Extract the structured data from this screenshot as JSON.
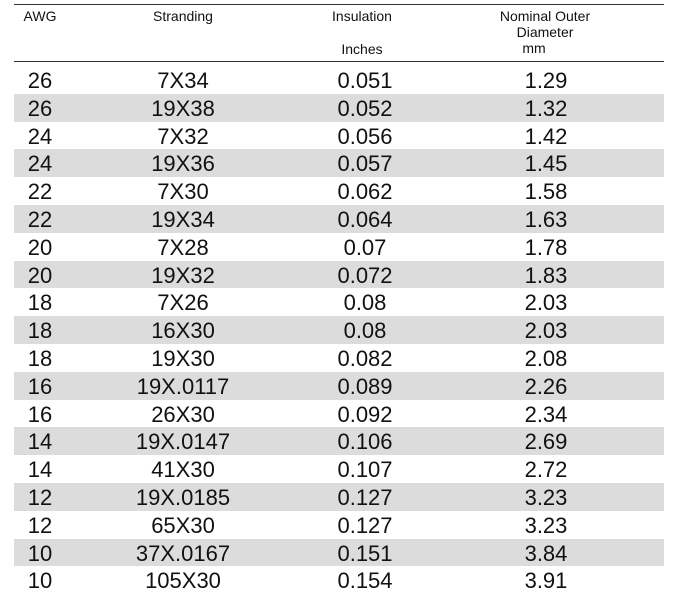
{
  "header": {
    "awg": "AWG",
    "stranding": "Stranding",
    "insulation": "Insulation",
    "insulation_unit": "Inches",
    "diameter_line1": "Nominal Outer",
    "diameter_line2": "Diameter",
    "diameter_unit": "mm"
  },
  "table": {
    "rows": [
      [
        "26",
        "7X34",
        "0.051",
        "1.29"
      ],
      [
        "26",
        "19X38",
        "0.052",
        "1.32"
      ],
      [
        "24",
        "7X32",
        "0.056",
        "1.42"
      ],
      [
        "24",
        "19X36",
        "0.057",
        "1.45"
      ],
      [
        "22",
        "7X30",
        "0.062",
        "1.58"
      ],
      [
        "22",
        "19X34",
        "0.064",
        "1.63"
      ],
      [
        "20",
        "7X28",
        "0.07",
        "1.78"
      ],
      [
        "20",
        "19X32",
        "0.072",
        "1.83"
      ],
      [
        "18",
        "7X26",
        "0.08",
        "2.03"
      ],
      [
        "18",
        "16X30",
        "0.08",
        "2.03"
      ],
      [
        "18",
        "19X30",
        "0.082",
        "2.08"
      ],
      [
        "16",
        "19X.0117",
        "0.089",
        "2.26"
      ],
      [
        "16",
        "26X30",
        "0.092",
        "2.34"
      ],
      [
        "14",
        "19X.0147",
        "0.106",
        "2.69"
      ],
      [
        "14",
        "41X30",
        "0.107",
        "2.72"
      ],
      [
        "12",
        "19X.0185",
        "0.127",
        "3.23"
      ],
      [
        "12",
        "65X30",
        "0.127",
        "3.23"
      ],
      [
        "10",
        "37X.0167",
        "0.151",
        "3.84"
      ],
      [
        "10",
        "105X30",
        "0.154",
        "3.91"
      ]
    ]
  }
}
